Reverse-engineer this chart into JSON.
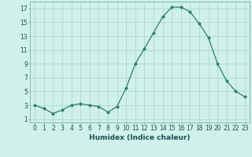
{
  "x": [
    0,
    1,
    2,
    3,
    4,
    5,
    6,
    7,
    8,
    9,
    10,
    11,
    12,
    13,
    14,
    15,
    16,
    17,
    18,
    19,
    20,
    21,
    22,
    23
  ],
  "y": [
    3.0,
    2.5,
    1.8,
    2.3,
    3.0,
    3.2,
    3.0,
    2.8,
    2.0,
    2.8,
    5.5,
    9.0,
    11.2,
    13.5,
    15.8,
    17.2,
    17.2,
    16.5,
    14.8,
    12.8,
    9.0,
    6.5,
    5.0,
    4.2
  ],
  "line_color": "#2e7d6e",
  "marker": "D",
  "marker_size": 2.0,
  "bg_color": "#cff0eb",
  "grid_color": "#aed8d2",
  "xlabel": "Humidex (Indice chaleur)",
  "xlim": [
    -0.5,
    23.5
  ],
  "ylim": [
    0.5,
    18
  ],
  "yticks": [
    1,
    3,
    5,
    7,
    9,
    11,
    13,
    15,
    17
  ],
  "xticks": [
    0,
    1,
    2,
    3,
    4,
    5,
    6,
    7,
    8,
    9,
    10,
    11,
    12,
    13,
    14,
    15,
    16,
    17,
    18,
    19,
    20,
    21,
    22,
    23
  ],
  "xtick_labels": [
    "0",
    "1",
    "2",
    "3",
    "4",
    "5",
    "6",
    "7",
    "8",
    "9",
    "10",
    "11",
    "12",
    "13",
    "14",
    "15",
    "16",
    "17",
    "18",
    "19",
    "20",
    "21",
    "22",
    "23"
  ],
  "xlabel_fontsize": 6.5,
  "tick_fontsize": 5.5,
  "text_color": "#1a5050",
  "line_width": 0.9
}
